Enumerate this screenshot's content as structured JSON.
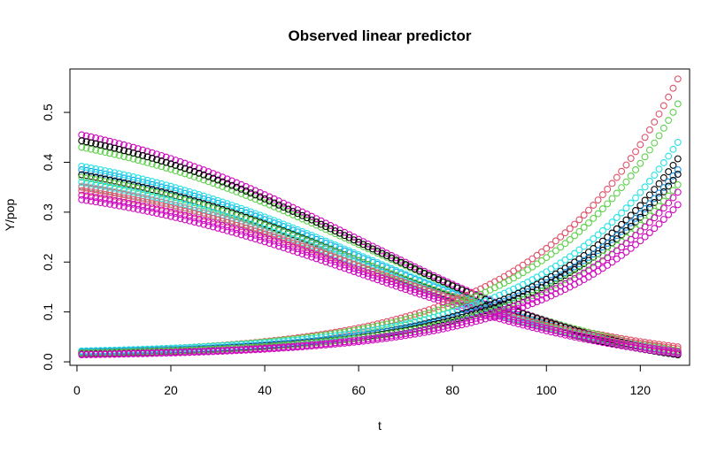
{
  "chart_data": {
    "type": "scatter",
    "title": "Observed linear predictor",
    "xlabel": "t",
    "ylabel": "Y/pop",
    "xlim": [
      -1.5,
      130.5
    ],
    "ylim": [
      -0.007,
      0.587
    ],
    "xticks": [
      0,
      20,
      40,
      60,
      80,
      100,
      120
    ],
    "yticks": [
      0.0,
      0.1,
      0.2,
      0.3,
      0.4,
      0.5
    ],
    "ytick_labels": [
      "0.0",
      "0.1",
      "0.2",
      "0.3",
      "0.4",
      "0.5"
    ],
    "grid": false,
    "legend": "none",
    "marker": "open-circle",
    "x_from": 1,
    "x_to": 128,
    "decreasing_series": [
      {
        "color": "#DF536B",
        "start": 0.35,
        "end": 0.03
      },
      {
        "color": "#61D04F",
        "start": 0.43,
        "end": 0.022
      },
      {
        "color": "#2297E6",
        "start": 0.385,
        "end": 0.02
      },
      {
        "color": "#28E2E5",
        "start": 0.392,
        "end": 0.02
      },
      {
        "color": "#CD0BBC",
        "start": 0.455,
        "end": 0.016
      },
      {
        "color": "#000000",
        "start": 0.443,
        "end": 0.017
      },
      {
        "color": "#000000",
        "start": 0.375,
        "end": 0.014
      },
      {
        "color": "#61D04F",
        "start": 0.37,
        "end": 0.019
      },
      {
        "color": "#28E2E5",
        "start": 0.36,
        "end": 0.018
      },
      {
        "color": "#9E9E9E",
        "start": 0.352,
        "end": 0.018
      },
      {
        "color": "#DF536B",
        "start": 0.343,
        "end": 0.026
      },
      {
        "color": "#CD0BBC",
        "start": 0.334,
        "end": 0.02
      },
      {
        "color": "#CD0BBC",
        "start": 0.325,
        "end": 0.016
      }
    ],
    "increasing_series": [
      {
        "color": "#DF536B",
        "start": 0.02,
        "end": 0.567
      },
      {
        "color": "#61D04F",
        "start": 0.021,
        "end": 0.517
      },
      {
        "color": "#28E2E5",
        "start": 0.022,
        "end": 0.44
      },
      {
        "color": "#000000",
        "start": 0.018,
        "end": 0.407
      },
      {
        "color": "#2297E6",
        "start": 0.02,
        "end": 0.385
      },
      {
        "color": "#000000",
        "start": 0.017,
        "end": 0.376
      },
      {
        "color": "#61D04F",
        "start": 0.018,
        "end": 0.355
      },
      {
        "color": "#CD0BBC",
        "start": 0.015,
        "end": 0.34
      },
      {
        "color": "#CD0BBC",
        "start": 0.014,
        "end": 0.315
      }
    ]
  }
}
